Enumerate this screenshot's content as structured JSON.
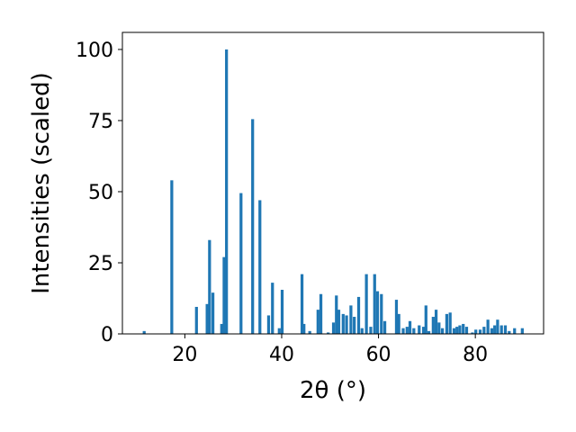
{
  "chart_data": {
    "type": "bar",
    "title": "",
    "xlabel": "2θ (°)",
    "ylabel": "Intensities (scaled)",
    "xlim": [
      7.1,
      94.1
    ],
    "ylim": [
      0,
      106
    ],
    "x_ticks": [
      20,
      40,
      60,
      80
    ],
    "y_ticks": [
      0,
      25,
      50,
      75,
      100
    ],
    "grid": false,
    "bar_color": "#1f77b4",
    "bar_width": 0.6,
    "series": [
      {
        "x": [
          11.6,
          17.3,
          22.4,
          24.6,
          25.1,
          25.8,
          27.6,
          28.1,
          28.6,
          31.6,
          34.0,
          35.5,
          37.3,
          38.1,
          39.5,
          40.1,
          44.2,
          44.6,
          45.8,
          47.5,
          48.1,
          49.6,
          50.7,
          51.3,
          51.8,
          52.7,
          53.4,
          54.3,
          55.0,
          55.9,
          56.6,
          57.5,
          58.4,
          59.2,
          59.8,
          60.6,
          61.3,
          63.7,
          64.2,
          65.1,
          65.9,
          66.5,
          67.3,
          68.4,
          69.3,
          69.8,
          70.4,
          71.3,
          71.9,
          72.5,
          73.2,
          74.1,
          74.8,
          75.6,
          76.2,
          76.8,
          77.5,
          78.2,
          79.4,
          80.1,
          81.0,
          81.8,
          82.6,
          83.4,
          84.0,
          84.6,
          85.4,
          86.2,
          87.0,
          88.1,
          89.7
        ],
        "values": [
          1,
          54,
          9.5,
          10.5,
          33,
          14.5,
          3.5,
          27,
          100,
          49.5,
          75.5,
          47,
          6.5,
          18,
          2,
          15.5,
          21,
          3.5,
          1,
          8.5,
          14,
          0.5,
          4,
          13.5,
          8.5,
          7,
          6.5,
          10,
          6,
          13,
          2,
          21,
          2.5,
          21,
          15,
          14,
          4.5,
          12,
          7,
          2,
          2.5,
          4.5,
          2,
          3,
          2.5,
          10,
          1,
          6,
          8.5,
          4,
          2,
          7,
          7.5,
          2,
          2.5,
          3,
          3.5,
          2.5,
          0.5,
          1.5,
          1.5,
          2.5,
          5,
          2,
          3,
          5,
          3,
          3,
          1,
          2,
          2
        ]
      }
    ]
  }
}
